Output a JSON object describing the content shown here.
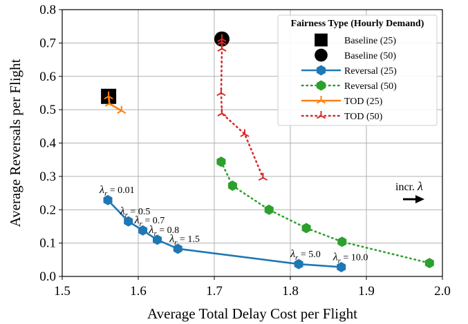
{
  "chart_data": {
    "type": "scatter",
    "xlabel": "Average Total Delay Cost per Flight",
    "ylabel": "Average Reversals per Flight",
    "xlim": [
      1.5,
      2.0
    ],
    "ylim": [
      0.0,
      0.8
    ],
    "xticks": [
      "1.5",
      "1.6",
      "1.7",
      "1.8",
      "1.9",
      "2.0"
    ],
    "yticks": [
      "0.0",
      "0.1",
      "0.2",
      "0.3",
      "0.4",
      "0.5",
      "0.6",
      "0.7",
      "0.8"
    ],
    "grid": true,
    "legend": {
      "title": "Fairness Type (Hourly Demand)",
      "placement": "top-right"
    },
    "series": [
      {
        "name": "Baseline (25)",
        "color": "#000000",
        "marker": "square",
        "line": "none",
        "x": [
          1.561
        ],
        "y": [
          0.54
        ]
      },
      {
        "name": "Baseline (50)",
        "color": "#000000",
        "marker": "circle",
        "line": "none",
        "x": [
          1.71
        ],
        "y": [
          0.712
        ]
      },
      {
        "name": "Reversal (25)",
        "color": "#1f77b4",
        "marker": "hexagon",
        "line": "solid",
        "x": [
          1.56,
          1.587,
          1.606,
          1.625,
          1.652,
          1.811,
          1.867
        ],
        "y": [
          0.229,
          0.165,
          0.138,
          0.11,
          0.083,
          0.037,
          0.028
        ]
      },
      {
        "name": "Reversal (50)",
        "color": "#2ca02c",
        "marker": "hexagon",
        "line": "dotted",
        "x": [
          1.709,
          1.724,
          1.772,
          1.821,
          1.868,
          1.983
        ],
        "y": [
          0.344,
          0.272,
          0.2,
          0.145,
          0.104,
          0.04
        ]
      },
      {
        "name": "TOD  (25)",
        "color": "#ff7f0e",
        "marker": "tri",
        "line": "solid",
        "x": [
          1.561,
          1.562,
          1.578
        ],
        "y": [
          0.54,
          0.518,
          0.497
        ]
      },
      {
        "name": "TOD  (50)",
        "color": "#d62728",
        "marker": "tri",
        "line": "dotted",
        "x": [
          1.71,
          1.71,
          1.71,
          1.709,
          1.71,
          1.74,
          1.764
        ],
        "y": [
          0.712,
          0.703,
          0.683,
          0.55,
          0.489,
          0.427,
          0.296
        ]
      }
    ],
    "annotations": [
      {
        "id": "lam-001",
        "label": "0.01",
        "x": 1.56,
        "y": 0.229
      },
      {
        "id": "lam-05",
        "label": "0.5",
        "x": 1.587,
        "y": 0.165
      },
      {
        "id": "lam-07",
        "label": "0.7",
        "x": 1.606,
        "y": 0.138
      },
      {
        "id": "lam-08",
        "label": "0.8",
        "x": 1.625,
        "y": 0.11
      },
      {
        "id": "lam-15",
        "label": "1.5",
        "x": 1.652,
        "y": 0.083
      },
      {
        "id": "lam-50",
        "label": "5.0",
        "x": 1.811,
        "y": 0.037
      },
      {
        "id": "lam-100",
        "label": "10.0",
        "x": 1.867,
        "y": 0.028
      }
    ],
    "lambda_symbol": "λ",
    "lambda_sub": "r",
    "lambda_eq": " = ",
    "increase_label": "incr. ",
    "increase_symbol": "λ"
  }
}
